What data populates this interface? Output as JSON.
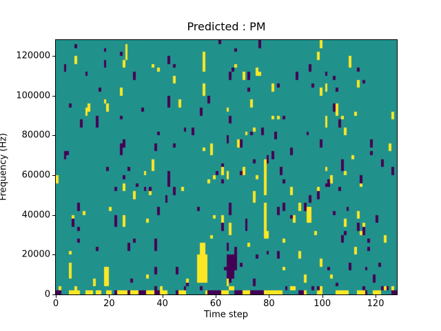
{
  "window": {
    "title": "Predicted : PM"
  },
  "chart_data": {
    "type": "heatmap",
    "title": "Predicted : PM",
    "xlabel": "Time step",
    "ylabel": "Frequency (Hz)",
    "x_range": [
      0,
      128
    ],
    "y_range": [
      0,
      128000
    ],
    "x_ticks": [
      0,
      20,
      40,
      60,
      80,
      100,
      120
    ],
    "y_ticks": [
      0,
      20000,
      40000,
      60000,
      80000,
      100000,
      120000
    ],
    "grid": {
      "cols": 128,
      "rows": 64,
      "hz_per_row": 2000,
      "steps_per_col": 1
    },
    "legend_position": "none",
    "grid_lines": "off",
    "colormap": {
      "name": "viridis",
      "classes": {
        "low": "#440154",
        "mid": "#21918c",
        "high": "#fde725"
      },
      "background_class": "mid"
    },
    "pattern": {
      "description": "Teal (mid) background with sparse single-column speckles of yellow (high) and dark purple (low), 1-3 cells tall; dense multicolor band on the bottom frequency row and elevated activity on the row above it.",
      "seed": 42,
      "speckle_start_probability": 0.03,
      "speckle_color_split_yellow": 0.5,
      "row1_yellow_probability": 0.1,
      "row1_purple_probability": 0.06,
      "bottom_row_weights": {
        "yellow": 0.36,
        "purple": 0.26,
        "teal": 0.38
      },
      "bottom_row_max_run": 3,
      "features": [
        {
          "name": "yellow-streak-low-freq",
          "cols": [
            53,
            56
          ],
          "rows": [
            3,
            9
          ],
          "class": "high"
        },
        {
          "name": "yellow-streak-tip",
          "cols": [
            54,
            55
          ],
          "rows": [
            10,
            12
          ],
          "class": "high"
        },
        {
          "name": "purple-cluster-low-freq",
          "cols": [
            64,
            66
          ],
          "rows": [
            4,
            9
          ],
          "class": "low"
        },
        {
          "name": "purple-cluster-column",
          "cols": [
            67,
            67
          ],
          "rows": [
            6,
            11
          ],
          "class": "low"
        },
        {
          "name": "yellow-column-mid-a",
          "cols": [
            78,
            78
          ],
          "rows": [
            14,
            22
          ],
          "class": "high"
        },
        {
          "name": "yellow-column-mid-b",
          "cols": [
            78,
            78
          ],
          "rows": [
            25,
            33
          ],
          "class": "high"
        },
        {
          "name": "yellow-blob-mid-right",
          "cols": [
            94,
            95
          ],
          "rows": [
            18,
            21
          ],
          "class": "high"
        },
        {
          "name": "yellow-bar-top-mid",
          "cols": [
            55,
            55
          ],
          "rows": [
            56,
            60
          ],
          "class": "high"
        },
        {
          "name": "yellow-bar-left-low",
          "cols": [
            18,
            19
          ],
          "rows": [
            2,
            6
          ],
          "class": "high"
        },
        {
          "name": "yellow-bar-top-left",
          "cols": [
            26,
            26
          ],
          "rows": [
            59,
            62
          ],
          "class": "high"
        }
      ]
    }
  },
  "layout_colors": {
    "figure_background": "#ffffff",
    "spine": "#000000",
    "text": "#000000"
  }
}
